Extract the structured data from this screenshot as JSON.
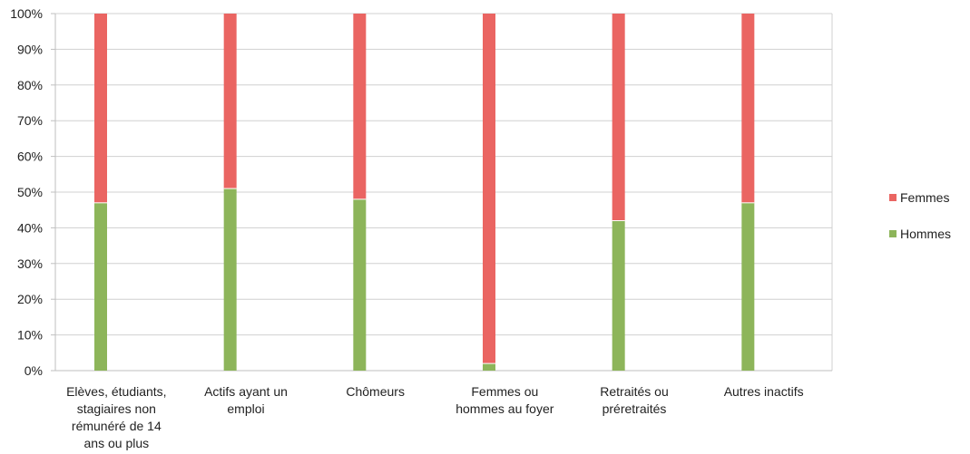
{
  "chart_data": {
    "type": "bar",
    "stacked": true,
    "percent": true,
    "categories": [
      "Elèves, étudiants, stagiaires non rémunéré de 14 ans ou plus",
      "Actifs ayant un emploi",
      "Chômeurs",
      "Femmes ou hommes au foyer",
      "Retraités ou préretraités",
      "Autres inactifs"
    ],
    "category_lines": [
      [
        "Elèves, étudiants,",
        "stagiaires non",
        "rémunéré de 14",
        "ans ou plus"
      ],
      [
        "Actifs ayant un",
        "emploi"
      ],
      [
        "Chômeurs"
      ],
      [
        "Femmes ou",
        "hommes au foyer"
      ],
      [
        "Retraités ou",
        "préretraités"
      ],
      [
        "Autres inactifs"
      ]
    ],
    "series": [
      {
        "name": "Hommes",
        "color": "#8db55a",
        "values": [
          47,
          51,
          48,
          2,
          42,
          47
        ]
      },
      {
        "name": "Femmes",
        "color": "#ea6562",
        "values": [
          53,
          49,
          52,
          98,
          58,
          53
        ]
      }
    ],
    "y_ticks": [
      "0%",
      "10%",
      "20%",
      "30%",
      "40%",
      "50%",
      "60%",
      "70%",
      "80%",
      "90%",
      "100%"
    ],
    "ylim": [
      0,
      100
    ],
    "grid": true,
    "legend": {
      "position": "right",
      "entries": [
        "Femmes",
        "Hommes"
      ]
    },
    "title": "",
    "xlabel": "",
    "ylabel": ""
  }
}
